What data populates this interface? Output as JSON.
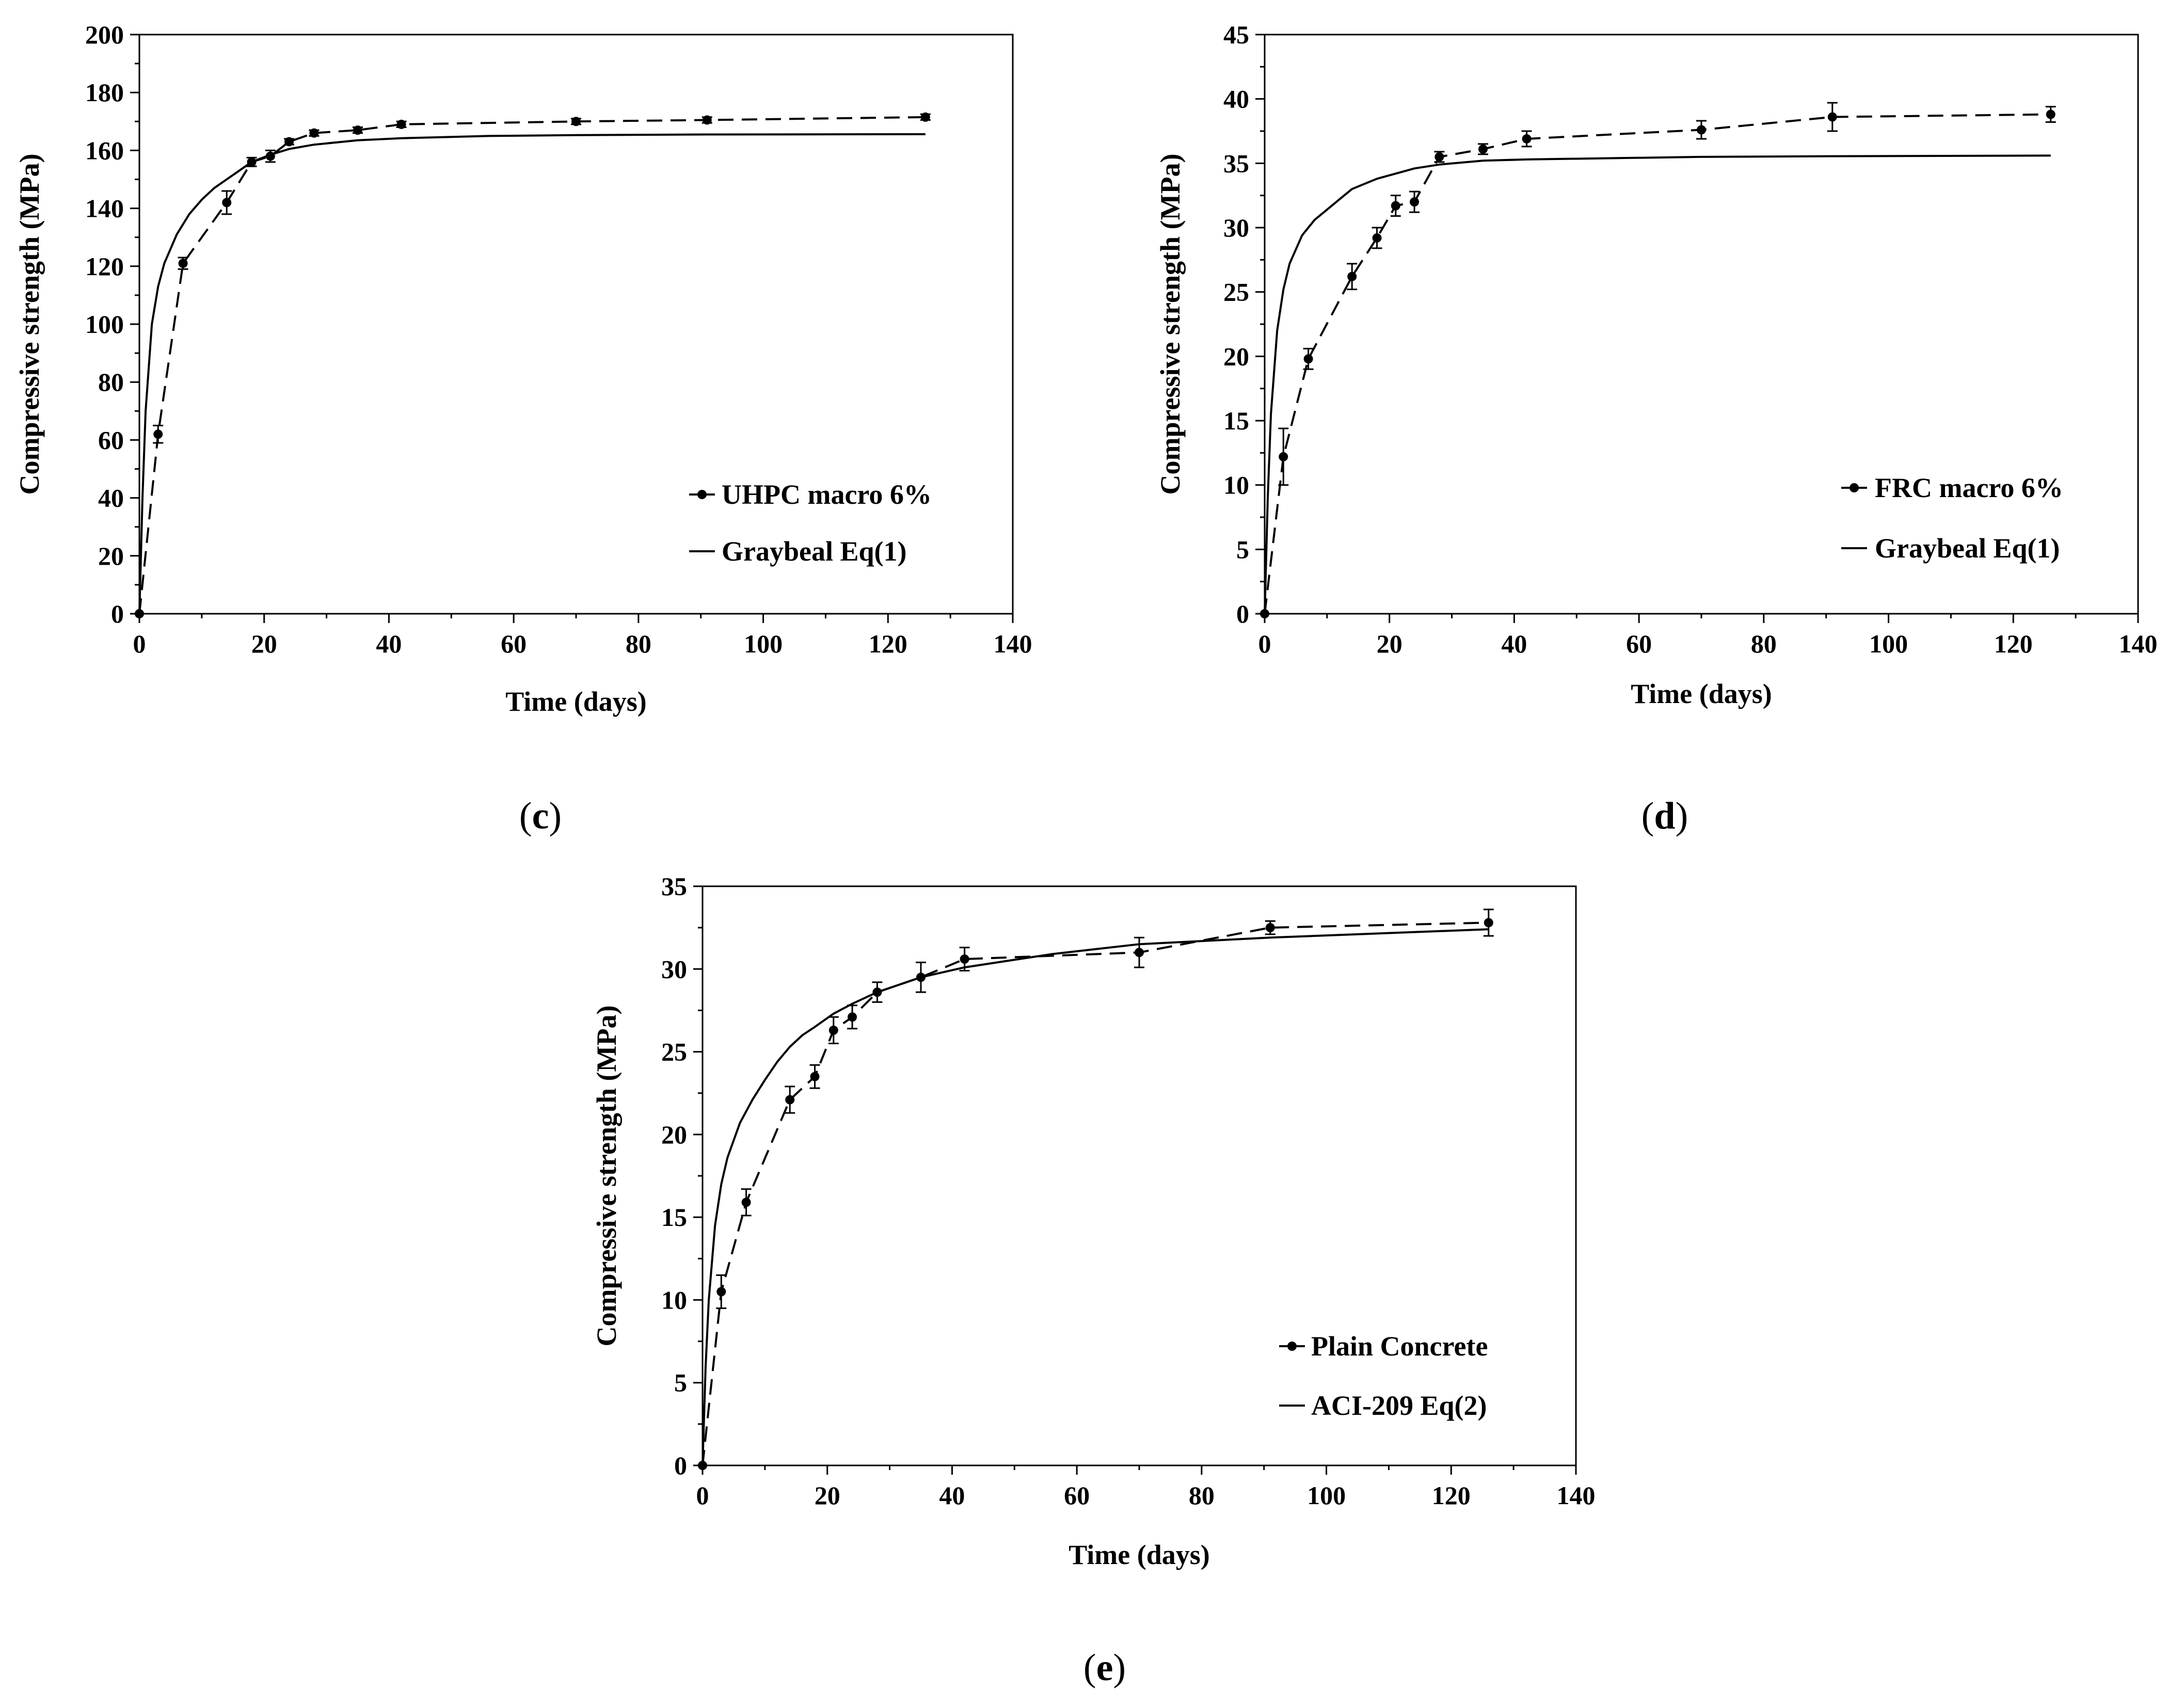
{
  "chart_data": [
    {
      "type": "line",
      "panel": "c",
      "caption": "c",
      "xlabel": "Time (days)",
      "ylabel": "Compressive strength (MPa)",
      "xlim": [
        0,
        140
      ],
      "ylim": [
        0,
        200
      ],
      "xticks": [
        "0",
        "20",
        "40",
        "60",
        "80",
        "100",
        "120",
        "140"
      ],
      "yticks": [
        "0",
        "20",
        "40",
        "60",
        "80",
        "100",
        "120",
        "140",
        "160",
        "180",
        "200"
      ],
      "legend_position": "bottom-right",
      "series": [
        {
          "name": "UHPC macro 6%",
          "style": "dashed-markers",
          "x": [
            0,
            3,
            7,
            14,
            18,
            21,
            24,
            28,
            35,
            42,
            70,
            91,
            126
          ],
          "y": [
            0,
            62,
            121,
            142,
            156,
            158,
            163,
            166,
            167,
            169,
            170,
            170.5,
            171.5
          ],
          "err": [
            0,
            3,
            2,
            4,
            1.5,
            2,
            1,
            1,
            1,
            1,
            1,
            1,
            1
          ]
        },
        {
          "name": "Graybeal Eq(1)",
          "style": "solid",
          "x": [
            0,
            0.5,
            1,
            2,
            3,
            4,
            6,
            8,
            10,
            12,
            14,
            16,
            18,
            21,
            24,
            28,
            35,
            42,
            56,
            70,
            91,
            126
          ],
          "y": [
            0,
            40,
            70,
            100,
            113,
            121,
            131,
            138,
            143,
            147,
            150,
            153,
            156,
            158.5,
            160.5,
            162,
            163.5,
            164.2,
            165,
            165.3,
            165.5,
            165.6
          ]
        }
      ]
    },
    {
      "type": "line",
      "panel": "d",
      "caption": "d",
      "xlabel": "Time (days)",
      "ylabel": "Compressive strength (MPa)",
      "xlim": [
        0,
        140
      ],
      "ylim": [
        0,
        45
      ],
      "xticks": [
        "0",
        "20",
        "40",
        "60",
        "80",
        "100",
        "120",
        "140"
      ],
      "yticks": [
        "0",
        "5",
        "10",
        "15",
        "20",
        "25",
        "30",
        "35",
        "40",
        "45"
      ],
      "legend_position": "bottom-right",
      "series": [
        {
          "name": "FRC macro 6%",
          "style": "dashed-markers",
          "x": [
            0,
            3,
            7,
            14,
            18,
            21,
            24,
            28,
            35,
            42,
            70,
            91,
            126
          ],
          "y": [
            0,
            12.2,
            19.8,
            26.2,
            29.2,
            31.7,
            32.0,
            35.5,
            36.1,
            36.9,
            37.6,
            38.6,
            38.8
          ],
          "err": [
            0,
            2.2,
            0.8,
            1.0,
            0.8,
            0.8,
            0.8,
            0.4,
            0.4,
            0.6,
            0.7,
            1.1,
            0.6
          ]
        },
        {
          "name": "Graybeal Eq(1)",
          "style": "solid",
          "x": [
            0,
            0.5,
            1,
            2,
            3,
            4,
            6,
            8,
            10,
            12,
            14,
            16,
            18,
            21,
            24,
            28,
            35,
            42,
            56,
            70,
            91,
            126
          ],
          "y": [
            0,
            9,
            15.5,
            22,
            25.2,
            27.2,
            29.4,
            30.6,
            31.4,
            32.2,
            33.0,
            33.4,
            33.8,
            34.2,
            34.6,
            34.9,
            35.2,
            35.3,
            35.4,
            35.5,
            35.55,
            35.6
          ]
        }
      ]
    },
    {
      "type": "line",
      "panel": "e",
      "caption": "e",
      "xlabel": "Time (days)",
      "ylabel": "Compressive strength (MPa)",
      "xlim": [
        0,
        140
      ],
      "ylim": [
        0,
        35
      ],
      "xticks": [
        "0",
        "20",
        "40",
        "60",
        "80",
        "100",
        "120",
        "140"
      ],
      "yticks": [
        "0",
        "5",
        "10",
        "15",
        "20",
        "25",
        "30",
        "35"
      ],
      "legend_position": "bottom-right",
      "series": [
        {
          "name": "Plain Concrete",
          "style": "dashed-markers",
          "x": [
            0,
            3,
            7,
            14,
            18,
            21,
            24,
            28,
            35,
            42,
            70,
            91,
            126
          ],
          "y": [
            0,
            10.5,
            15.9,
            22.1,
            23.5,
            26.3,
            27.1,
            28.6,
            29.5,
            30.6,
            31.0,
            32.5,
            32.8
          ],
          "err": [
            0,
            1.0,
            0.8,
            0.8,
            0.7,
            0.8,
            0.7,
            0.6,
            0.9,
            0.7,
            0.9,
            0.4,
            0.8
          ]
        },
        {
          "name": "ACI-209 Eq(2)",
          "style": "solid",
          "x": [
            0,
            0.5,
            1,
            2,
            3,
            4,
            6,
            8,
            10,
            12,
            14,
            16,
            18,
            21,
            24,
            28,
            35,
            42,
            56,
            70,
            91,
            126
          ],
          "y": [
            0,
            6,
            10,
            14.5,
            17,
            18.6,
            20.7,
            22.1,
            23.3,
            24.4,
            25.3,
            26.0,
            26.5,
            27.3,
            27.9,
            28.6,
            29.5,
            30.1,
            30.9,
            31.5,
            31.9,
            32.4
          ]
        }
      ]
    }
  ]
}
